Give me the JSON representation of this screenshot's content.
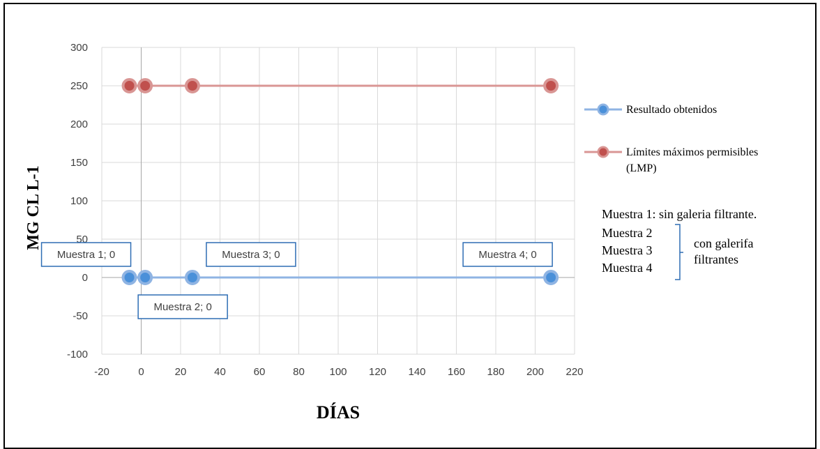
{
  "chart_data": {
    "type": "scatter",
    "xlabel": "DÍAS",
    "ylabel": "MG CL L-1",
    "xlim": [
      -20,
      220
    ],
    "ylim": [
      -100,
      300
    ],
    "xticks": [
      -20,
      0,
      20,
      40,
      60,
      80,
      100,
      120,
      140,
      160,
      180,
      200,
      220
    ],
    "yticks": [
      -100,
      -50,
      0,
      50,
      100,
      150,
      200,
      250,
      300
    ],
    "grid": true,
    "legend_position": "right",
    "series": [
      {
        "name": "Resultado obtenidos",
        "color": "#4a90d9",
        "line_color": "#8fb4e3",
        "x": [
          -6,
          2,
          26,
          208
        ],
        "y": [
          0,
          0,
          0,
          0
        ]
      },
      {
        "name": "Límites máximos permisibles (LMP)",
        "color": "#c0504d",
        "line_color": "#d99694",
        "x": [
          -6,
          2,
          26,
          208
        ],
        "y": [
          250,
          250,
          250,
          250
        ]
      }
    ],
    "legend": [
      {
        "line1": "Resultado obtenidos",
        "line2": ""
      },
      {
        "line1": "Límites máximos permisibles",
        "line2": "(LMP)"
      }
    ],
    "data_labels": [
      {
        "text": "Muestra 1; 0",
        "x": -6,
        "y": 0,
        "position": "above-left"
      },
      {
        "text": "Muestra 2; 0",
        "x": 2,
        "y": 0,
        "position": "below"
      },
      {
        "text": "Muestra 3; 0",
        "x": 26,
        "y": 0,
        "position": "above-right"
      },
      {
        "text": "Muestra 4; 0",
        "x": 208,
        "y": 0,
        "position": "above-left"
      }
    ],
    "annotation": {
      "line1": "Muestra 1: sin galeria filtrante.",
      "group": [
        "Muestra 2",
        "Muestra 3",
        "Muestra 4"
      ],
      "group_label_1": "con galerifa",
      "group_label_2": "filtrantes"
    }
  }
}
